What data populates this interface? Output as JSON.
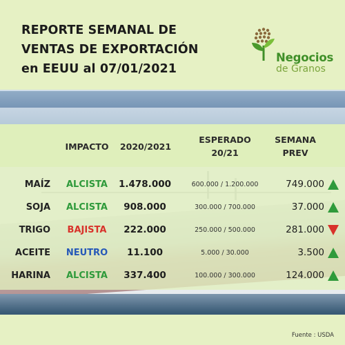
{
  "header": {
    "title_lines": [
      "REPORTE SEMANAL DE",
      "VENTAS DE EXPORTACIÓN",
      "en EEUU al 07/01/2021"
    ]
  },
  "logo": {
    "word1": "Negocios",
    "word2": "de Granos"
  },
  "colors": {
    "header_bg": "#e6f1c4",
    "alcista": "#2f9a3b",
    "bajista": "#d8322a",
    "neutro": "#2658b8",
    "arrow_up": "#2f9a3b",
    "arrow_down": "#d8322a"
  },
  "table": {
    "headers": {
      "impacto": "IMPACTO",
      "current": "2020/2021",
      "esperado_line1": "ESPERADO",
      "esperado_line2": "20/21",
      "semana_line1": "SEMANA",
      "semana_line2": "PREV"
    },
    "rows": [
      {
        "name": "MAÍZ",
        "impact": "ALCISTA",
        "impact_type": "alcista",
        "value": "1.478.000",
        "expected": "600.000 / 1.200.000",
        "prev": "749.000",
        "arrow": "up-arrow-icon"
      },
      {
        "name": "SOJA",
        "impact": "ALCISTA",
        "impact_type": "alcista",
        "value": "908.000",
        "expected": "300.000 / 700.000",
        "prev": "37.000",
        "arrow": "up-arrow-icon"
      },
      {
        "name": "TRIGO",
        "impact": "BAJISTA",
        "impact_type": "bajista",
        "value": "222.000",
        "expected": "250.000 / 500.000",
        "prev": "281.000",
        "arrow": "down-arrow-icon"
      },
      {
        "name": "ACEITE",
        "impact": "NEUTRO",
        "impact_type": "neutro",
        "value": "11.100",
        "expected": "5.000 / 30.000",
        "prev": "3.500",
        "arrow": "up-arrow-icon"
      },
      {
        "name": "HARINA",
        "impact": "ALCISTA",
        "impact_type": "alcista",
        "value": "337.400",
        "expected": "100.000 / 300.000",
        "prev": "124.000",
        "arrow": "up-arrow-icon"
      }
    ]
  },
  "footer": {
    "source": "Fuente : USDA"
  }
}
